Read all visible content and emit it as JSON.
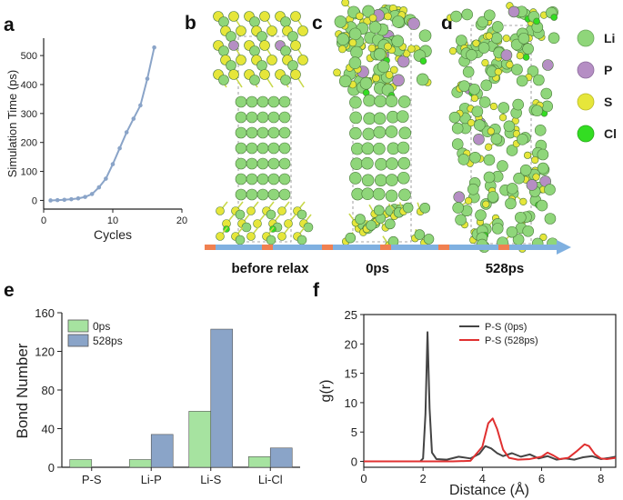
{
  "panel_letters": {
    "a": "a",
    "b": "b",
    "c": "c",
    "d": "d",
    "e": "e",
    "f": "f"
  },
  "legend_elements": [
    {
      "label": "Li",
      "color": "#8fd67a"
    },
    {
      "label": "P",
      "color": "#b58ec4"
    },
    {
      "label": "S",
      "color": "#e6e63a"
    },
    {
      "label": "Cl",
      "color": "#33dd22"
    }
  ],
  "timeline": {
    "labels": [
      "before relax",
      "0ps",
      "528ps"
    ],
    "bar_color": "#7fb0e0",
    "tick_color": "#f08050"
  },
  "atom_colors": {
    "li": "#8fd67a",
    "li_dark": "#5a9a4a",
    "p": "#b58ec4",
    "s": "#e6e63a",
    "cl": "#33dd22",
    "bond": "#c8d84a"
  },
  "chart_data": [
    {
      "id": "a",
      "type": "line",
      "title": "",
      "xlabel": "Cycles",
      "ylabel": "Simulation Time (ps)",
      "xlim": [
        0,
        20
      ],
      "ylim": [
        -30,
        560
      ],
      "xticks": [
        0,
        10,
        20
      ],
      "yticks": [
        0,
        100,
        200,
        300,
        400,
        500
      ],
      "x": [
        1,
        2,
        3,
        4,
        5,
        6,
        7,
        8,
        9,
        10,
        11,
        12,
        13,
        14,
        15,
        16
      ],
      "y": [
        0,
        1,
        2,
        4,
        7,
        12,
        22,
        45,
        75,
        125,
        180,
        235,
        282,
        328,
        420,
        528
      ],
      "color": "#8aa4c8"
    },
    {
      "id": "e",
      "type": "bar",
      "xlabel": "",
      "ylabel": "Bond Number",
      "ylim": [
        0,
        160
      ],
      "yticks": [
        0,
        40,
        80,
        120,
        160
      ],
      "categories": [
        "P-S",
        "Li-P",
        "Li-S",
        "Li-Cl"
      ],
      "series": [
        {
          "name": "0ps",
          "values": [
            8,
            8,
            58,
            11
          ],
          "color": "#a6e3a0"
        },
        {
          "name": "528ps",
          "values": [
            0,
            34,
            143,
            20
          ],
          "color": "#8aa4c8"
        }
      ],
      "legend": "top-left"
    },
    {
      "id": "f",
      "type": "line",
      "xlabel": "Distance (Å)",
      "ylabel": "g(r)",
      "xlim": [
        0,
        8.5
      ],
      "ylim": [
        -1,
        25
      ],
      "xticks": [
        0,
        2,
        4,
        6,
        8
      ],
      "yticks": [
        0,
        5,
        10,
        15,
        20,
        25
      ],
      "series": [
        {
          "name": "P-S (0ps)",
          "color": "#444444",
          "x": [
            0,
            1.9,
            2.0,
            2.08,
            2.15,
            2.22,
            2.3,
            2.45,
            2.8,
            3.2,
            3.6,
            3.9,
            4.1,
            4.3,
            4.5,
            4.7,
            5.0,
            5.3,
            5.6,
            5.9,
            6.2,
            6.5,
            6.8,
            7.1,
            7.4,
            7.7,
            8.0,
            8.3,
            8.5
          ],
          "y": [
            0,
            0,
            0.5,
            8,
            22,
            9,
            1.5,
            0.4,
            0.3,
            0.8,
            0.5,
            1.3,
            2.6,
            2.2,
            1.4,
            0.9,
            1.4,
            0.8,
            1.2,
            0.5,
            0.9,
            0.3,
            0.5,
            0.3,
            0.7,
            0.9,
            0.4,
            0.6,
            0.8
          ]
        },
        {
          "name": "P-S (528ps)",
          "color": "#e03030",
          "x": [
            0,
            2.0,
            3.0,
            3.6,
            4.0,
            4.2,
            4.35,
            4.5,
            4.7,
            4.9,
            5.2,
            5.6,
            6.0,
            6.2,
            6.4,
            6.6,
            6.9,
            7.2,
            7.45,
            7.6,
            7.8,
            8.0,
            8.2,
            8.5
          ],
          "y": [
            0,
            0,
            0,
            0.1,
            2.5,
            6.5,
            7.3,
            5.5,
            2.0,
            0.6,
            0.3,
            0.4,
            0.8,
            1.5,
            1.0,
            0.4,
            0.6,
            1.8,
            2.9,
            2.6,
            1.2,
            0.5,
            0.4,
            0.6
          ]
        }
      ],
      "legend": "top-right"
    }
  ]
}
